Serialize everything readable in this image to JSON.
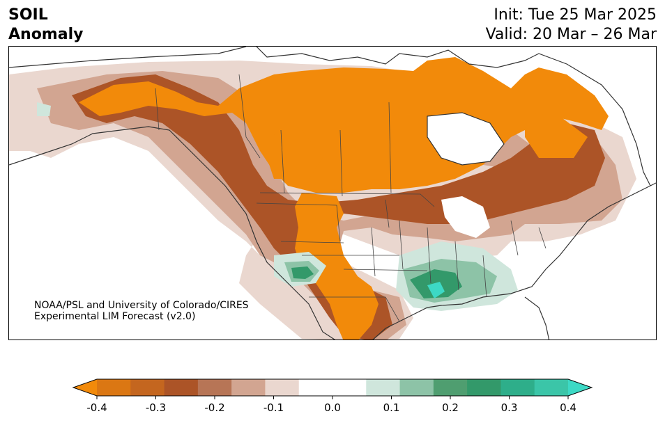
{
  "title": {
    "line1": "SOIL",
    "line2": "Anomaly"
  },
  "init": "Init: Tue 25 Mar 2025",
  "valid": "Valid: 20 Mar – 26 Mar",
  "credit": {
    "line1": "NOAA/PSL and University of Colorado/CIRES",
    "line2": "Experimental LIM Forecast (v2.0)"
  },
  "colorbar": {
    "colors": [
      "#f28a0a",
      "#db7713",
      "#c4661f",
      "#ac5427",
      "#b77556",
      "#d2a591",
      "#ead7cf",
      "#ffffff",
      "#ffffff",
      "#cfe6dc",
      "#8dc3a7",
      "#4f9e70",
      "#33996a",
      "#2eae8a",
      "#3bc5a8",
      "#3dd9c5"
    ],
    "ticks": [
      "-0.4",
      "-0.3",
      "-0.2",
      "-0.1",
      "0.0",
      "0.1",
      "0.2",
      "0.3",
      "0.4"
    ]
  },
  "colors": {
    "land_line": "#333333",
    "strong_dry": "#f28a0a",
    "wet": "#33996a"
  }
}
